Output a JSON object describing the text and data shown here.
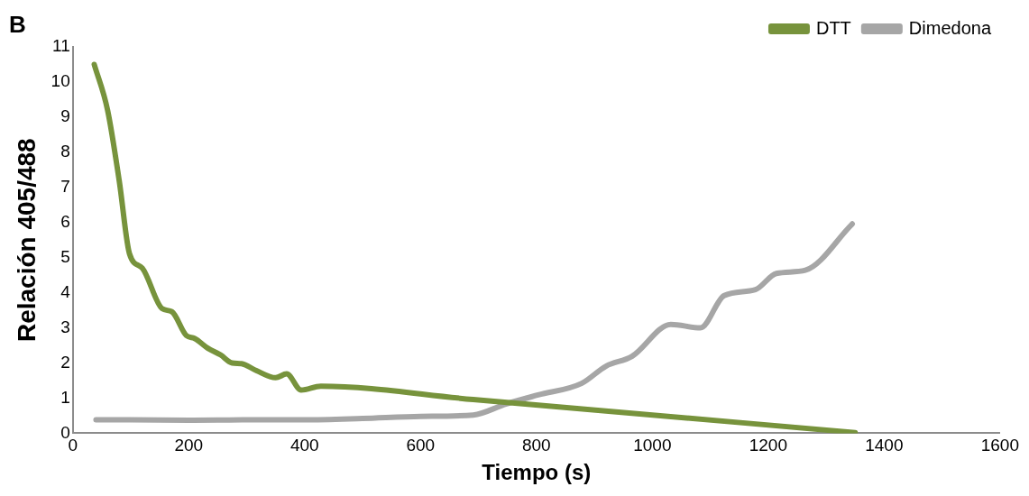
{
  "chart_data": {
    "type": "line",
    "title": "B",
    "xlabel": "Tiempo (s)",
    "ylabel": "Relación 405/488",
    "xlim": [
      0,
      1600
    ],
    "xticks": [
      0,
      200,
      400,
      600,
      800,
      1000,
      1200,
      1400,
      1600
    ],
    "ylim": [
      0,
      11
    ],
    "yticks": [
      0,
      1,
      2,
      3,
      4,
      5,
      6,
      7,
      8,
      9,
      10,
      11
    ],
    "grid": false,
    "legend": "top right",
    "marker": "none",
    "line_style": "solid",
    "series": [
      {
        "name": "DTT",
        "color": "#77933c",
        "x": [
          37,
          60,
          80,
          98,
          120,
          154,
          171,
          196,
          210,
          233,
          255,
          275,
          291,
          317,
          350,
          369,
          394,
          428,
          691,
          1350
        ],
        "values": [
          10.5,
          9.2,
          7.2,
          5.1,
          4.7,
          3.55,
          3.46,
          2.78,
          2.7,
          2.42,
          2.23,
          2.0,
          1.98,
          1.78,
          1.58,
          1.69,
          1.23,
          1.34,
          0.96,
          0.02
        ]
      },
      {
        "name": "Dimedona",
        "color": "#a6a6a6",
        "x": [
          40,
          100,
          200,
          300,
          400,
          500,
          600,
          691,
          747,
          803,
          878,
          920,
          965,
          1032,
          1083,
          1124,
          1178,
          1214,
          1264,
          1345
        ],
        "values": [
          0.38,
          0.38,
          0.37,
          0.38,
          0.38,
          0.42,
          0.48,
          0.52,
          0.83,
          1.09,
          1.42,
          1.91,
          2.19,
          3.1,
          3.0,
          3.92,
          4.09,
          4.55,
          4.64,
          5.96
        ]
      }
    ]
  }
}
